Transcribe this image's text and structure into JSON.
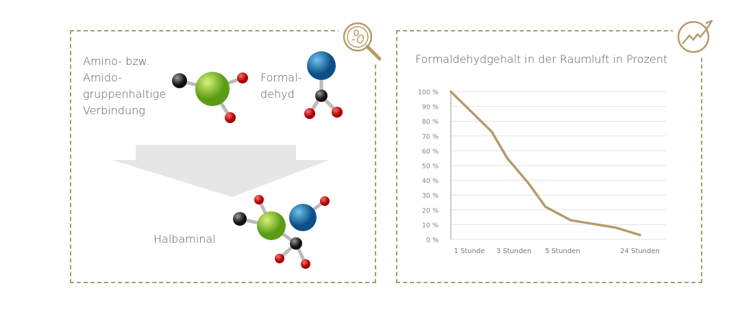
{
  "diagram": {
    "reactant_1_label": [
      "Amino- bzw.",
      "Amido-",
      "gruppenhaltige",
      "Verbindung"
    ],
    "reactant_2_label": [
      "Formal-",
      "dehyd"
    ],
    "product_label": "Halbaminal",
    "icon_left": "magnifier-bacteria-icon",
    "icon_right": "trend-chart-icon"
  },
  "colors": {
    "accent": "#b59a6a",
    "border": "#a89a6a",
    "green": "#7cc225",
    "blue": "#1a78b8",
    "red": "#cc1f1f",
    "black": "#333333"
  },
  "chart_data": {
    "type": "line",
    "title": "Formaldehydgehalt in der Raumluft in Prozent",
    "xlabel": "",
    "ylabel": "",
    "x_tick_labels": [
      "1 Stunde",
      "3 Stunden",
      "5 Stunden",
      "24 Stunden"
    ],
    "x_tick_hours": [
      1,
      3,
      5,
      24
    ],
    "y_tick_labels": [
      "0 %",
      "10 %",
      "20 %",
      "30 %",
      "40 %",
      "50 %",
      "60 %",
      "70 %",
      "80 %",
      "90 %",
      "100 %"
    ],
    "ylim": [
      0,
      100
    ],
    "grid": true,
    "series": [
      {
        "x": [
          0,
          2,
          2.7,
          3.6,
          4.3,
          7,
          18,
          24
        ],
        "y": [
          100,
          73,
          55,
          38,
          22,
          13,
          8,
          3
        ]
      }
    ]
  }
}
